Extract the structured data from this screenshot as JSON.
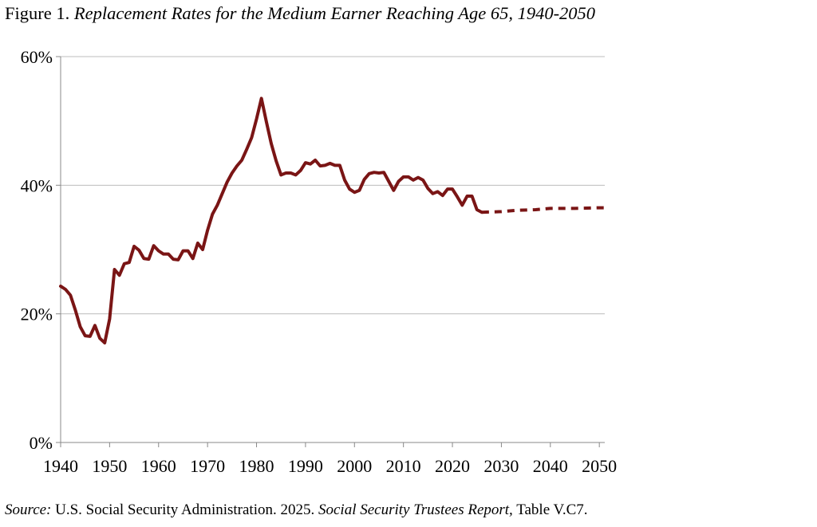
{
  "title": {
    "prefix": "Figure 1. ",
    "text": "Replacement Rates for the Medium Earner Reaching Age 65, 1940-2050"
  },
  "source": {
    "label": "Source:",
    "part1": " U.S. Social Security Administration. 2025. ",
    "report": "Social Security Trustees Report,",
    "part2": " Table V.C7."
  },
  "chart_data": {
    "type": "line",
    "title": "Replacement Rates for the Medium Earner Reaching Age 65, 1940-2050",
    "xlabel": "",
    "ylabel": "",
    "xlim": [
      1940,
      2051
    ],
    "ylim": [
      0,
      60
    ],
    "x_ticks": [
      1940,
      1950,
      1960,
      1970,
      1980,
      1990,
      2000,
      2010,
      2020,
      2030,
      2040,
      2050
    ],
    "y_ticks": [
      0,
      20,
      40,
      60
    ],
    "y_tick_labels": [
      "0%",
      "20%",
      "40%",
      "60%"
    ],
    "grid": "horizontal",
    "line_color": "#7a1515",
    "series": [
      {
        "style": "solid",
        "x": [
          1940,
          1941,
          1942,
          1943,
          1944,
          1945,
          1946,
          1947,
          1948,
          1949,
          1950,
          1951,
          1952,
          1953,
          1954,
          1955,
          1956,
          1957,
          1958,
          1959,
          1960,
          1961,
          1962,
          1963,
          1964,
          1965,
          1966,
          1967,
          1968,
          1969,
          1970,
          1971,
          1972,
          1973,
          1974,
          1975,
          1976,
          1977,
          1978,
          1979,
          1980,
          1981,
          1982,
          1983,
          1984,
          1985,
          1986,
          1987,
          1988,
          1989,
          1990,
          1991,
          1992,
          1993,
          1994,
          1995,
          1996,
          1997,
          1998,
          1999,
          2000,
          2001,
          2002,
          2003,
          2004,
          2005,
          2006,
          2007,
          2008,
          2009,
          2010,
          2011,
          2012,
          2013,
          2014,
          2015,
          2016,
          2017,
          2018,
          2019,
          2020,
          2021,
          2022,
          2023,
          2024,
          2025,
          2026
        ],
        "y": [
          24.3,
          23.8,
          22.9,
          20.6,
          18.0,
          16.6,
          16.5,
          18.2,
          16.2,
          15.5,
          19.2,
          26.9,
          26.0,
          27.8,
          28.0,
          30.5,
          29.9,
          28.6,
          28.5,
          30.6,
          29.8,
          29.3,
          29.3,
          28.5,
          28.4,
          29.8,
          29.8,
          28.6,
          31.0,
          30.0,
          33.0,
          35.5,
          36.9,
          38.7,
          40.5,
          41.9,
          43.0,
          43.9,
          45.6,
          47.4,
          50.3,
          53.5,
          49.9,
          46.5,
          43.8,
          41.6,
          41.9,
          41.9,
          41.6,
          42.3,
          43.5,
          43.3,
          43.9,
          43.0,
          43.1,
          43.4,
          43.1,
          43.1,
          40.8,
          39.4,
          38.9,
          39.2,
          40.9,
          41.8,
          42.0,
          41.9,
          42.0,
          40.6,
          39.2,
          40.6,
          41.3,
          41.3,
          40.8,
          41.2,
          40.8,
          39.5,
          38.7,
          39.0,
          38.4,
          39.4,
          39.4,
          38.2,
          36.9,
          38.3,
          38.3,
          36.2,
          35.8
        ]
      },
      {
        "style": "dashed",
        "x": [
          2026,
          2030,
          2033,
          2037,
          2040,
          2045,
          2050,
          2051
        ],
        "y": [
          35.8,
          35.9,
          36.1,
          36.2,
          36.4,
          36.4,
          36.5,
          36.5
        ]
      }
    ]
  }
}
